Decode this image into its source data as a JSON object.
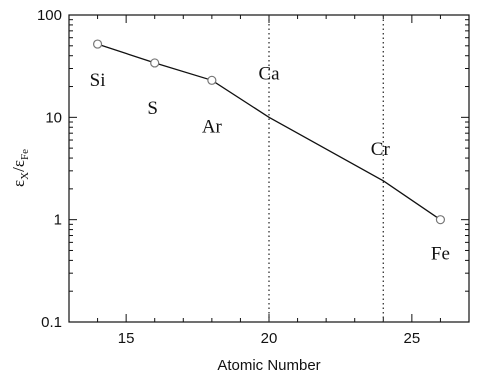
{
  "chart_data": {
    "type": "line",
    "title": "",
    "xlabel": "Atomic Number",
    "ylabel": {
      "eps": "ε",
      "num_sub": "X",
      "slash": "/",
      "den_sub": "Fe"
    },
    "xlim": [
      13,
      27
    ],
    "ylim": [
      0.1,
      100
    ],
    "yscale": "log",
    "grid": false,
    "legend": "none",
    "x_ticks": [
      15,
      20,
      25
    ],
    "x_tick_labels": [
      "15",
      "20",
      "25"
    ],
    "y_ticks": [
      0.1,
      1,
      10,
      100
    ],
    "y_tick_labels": [
      "0.1",
      "1",
      "10",
      "100"
    ],
    "series": [
      {
        "x": [
          14,
          16,
          18,
          20,
          24,
          26
        ],
        "y": [
          52,
          34,
          23,
          10,
          2.4,
          1.0
        ],
        "markers": [
          true,
          true,
          true,
          false,
          false,
          true
        ]
      }
    ],
    "point_labels": [
      {
        "text": "Si",
        "x": 14
      },
      {
        "text": "S",
        "x": 16
      },
      {
        "text": "Ar",
        "x": 18
      },
      {
        "text": "Ca",
        "x": 20
      },
      {
        "text": "Cr",
        "x": 24
      },
      {
        "text": "Fe",
        "x": 26
      }
    ],
    "vlines": [
      20,
      24
    ],
    "colors": {
      "line": "#111111",
      "marker": "#777777",
      "axis": "#111111",
      "vline": "#333333"
    }
  }
}
